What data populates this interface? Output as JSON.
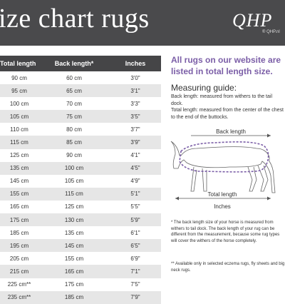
{
  "header": {
    "title": "ize chart rugs",
    "logo_text": "QHP",
    "logo_sub": "® QHP.nl"
  },
  "table": {
    "headers": [
      "Total length",
      "Back length*",
      "Inches"
    ],
    "rows": [
      [
        "90 cm",
        "60 cm",
        "3'0\""
      ],
      [
        "95 cm",
        "65 cm",
        "3'1\""
      ],
      [
        "100 cm",
        "70 cm",
        "3'3\""
      ],
      [
        "105 cm",
        "75 cm",
        "3'5\""
      ],
      [
        "110 cm",
        "80 cm",
        "3'7\""
      ],
      [
        "115 cm",
        "85 cm",
        "3'9\""
      ],
      [
        "125 cm",
        "90 cm",
        "4'1\""
      ],
      [
        "135 cm",
        "100 cm",
        "4'5\""
      ],
      [
        "145 cm",
        "105 cm",
        "4'9\""
      ],
      [
        "155 cm",
        "115 cm",
        "5'1\""
      ],
      [
        "165 cm",
        "125 cm",
        "5'5\""
      ],
      [
        "175 cm",
        "130 cm",
        "5'9\""
      ],
      [
        "185 cm",
        "135 cm",
        "6'1\""
      ],
      [
        "195 cm",
        "145 cm",
        "6'5\""
      ],
      [
        "205 cm",
        "155 cm",
        "6'9\""
      ],
      [
        "215 cm",
        "165 cm",
        "7'1\""
      ],
      [
        "225 cm**",
        "175 cm",
        "7'5\""
      ],
      [
        "235 cm**",
        "185 cm",
        "7'9\""
      ]
    ]
  },
  "info": {
    "highlight": "All rugs on our website are listed in total length size.",
    "guide_title": "Measuring guide:",
    "back_length_text": "Back length: measured from withers to the tail dock.",
    "total_length_text": "Total length: measured from the center of the chest to the end of the buttocks.",
    "diagram_label_back": "Back length",
    "diagram_label_total": "Total length",
    "diagram_label_inches": "Inches",
    "footnote_1": "* The back length size of your horse is measured from withers to tail dock. The back length of your rug can be different from the measurement, because some rug types will cover the withers of the horse completely.",
    "footnote_2": "** Available only in selected eczema rugs, fly sheets and big neck rugs."
  },
  "colors": {
    "header_bg": "#4a4a4c",
    "accent_purple": "#7b5ea7",
    "row_stripe": "#e6e6e6"
  }
}
